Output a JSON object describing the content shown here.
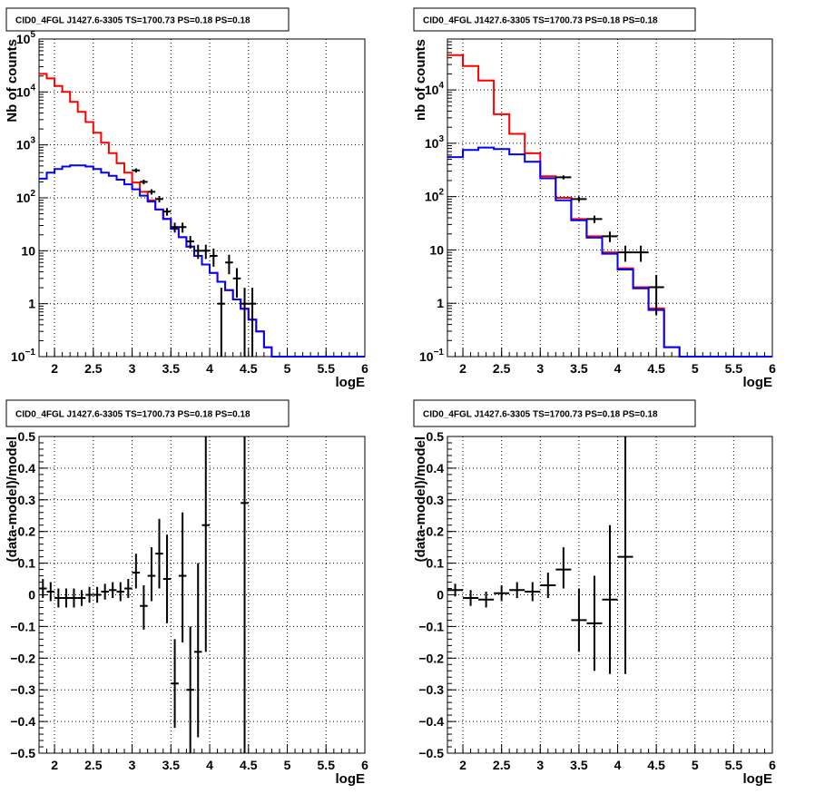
{
  "chart_data": [
    {
      "type": "histogram",
      "title": "CID0_4FGL J1427.6-3305 TS=1700.73 PS=0.18 PS=0.18",
      "xlabel": "logE",
      "ylabel": "Nb of counts",
      "xlim": [
        1.8,
        6.0
      ],
      "ylim": [
        0.1,
        100000
      ],
      "yscale": "log",
      "grid": true,
      "xticks": [
        "2",
        "2.5",
        "3",
        "3.5",
        "4",
        "4.5",
        "5",
        "5.5",
        "6"
      ],
      "yticks": [
        {
          "v": 0.1,
          "label": "10",
          "exp": "−1"
        },
        {
          "v": 1,
          "label": "1"
        },
        {
          "v": 10,
          "label": "10"
        },
        {
          "v": 100,
          "label": "10",
          "exp": "2"
        },
        {
          "v": 1000,
          "label": "10",
          "exp": "3"
        },
        {
          "v": 10000,
          "label": "10",
          "exp": "4"
        },
        {
          "v": 100000,
          "label": "10",
          "exp": "5"
        }
      ],
      "bin_edges": [
        1.8,
        1.9,
        2.0,
        2.1,
        2.2,
        2.3,
        2.4,
        2.5,
        2.6,
        2.7,
        2.8,
        2.9,
        3.0,
        3.1,
        3.2,
        3.3,
        3.4,
        3.5,
        3.6,
        3.7,
        3.8,
        3.9,
        4.0,
        4.1,
        4.2,
        4.3,
        4.4,
        4.5,
        4.6,
        4.7,
        4.8,
        4.9,
        5.0,
        5.1,
        5.2,
        5.3,
        5.4,
        5.5,
        5.6,
        5.7,
        5.8,
        5.9,
        6.0
      ],
      "series": [
        {
          "color": "#ff0000",
          "style": "step",
          "values": [
            22000,
            18000,
            13000,
            10000,
            6500,
            4200,
            2700,
            1700,
            1100,
            700,
            450,
            300,
            195,
            130,
            90,
            60,
            40,
            26,
            18,
            12,
            8,
            5.5,
            3.8,
            2.6,
            1.8,
            1.2,
            0.8,
            0.5,
            0.3,
            0.15,
            0.1,
            0.1,
            0.1,
            0.1,
            0.1,
            0.1,
            0.1,
            0.1,
            0.1,
            0.1,
            0.1,
            0.1
          ]
        },
        {
          "color": "#0000ff",
          "style": "step",
          "values": [
            230,
            300,
            350,
            390,
            410,
            410,
            390,
            350,
            300,
            260,
            220,
            180,
            145,
            110,
            85,
            60,
            40,
            26,
            18,
            12,
            8,
            5.5,
            3.8,
            2.6,
            1.8,
            1.2,
            0.8,
            0.5,
            0.3,
            0.15,
            0.1,
            0.1,
            0.1,
            0.1,
            0.1,
            0.1,
            0.1,
            0.1,
            0.1,
            0.1,
            0.1,
            0.1
          ]
        },
        {
          "color": "#000000",
          "style": "errorbar",
          "points": [
            {
              "x": 3.05,
              "xerr": 0.05,
              "y": 330,
              "ylo": 300,
              "yhi": 360
            },
            {
              "x": 3.15,
              "xerr": 0.05,
              "y": 200,
              "ylo": 180,
              "yhi": 220
            },
            {
              "x": 3.25,
              "xerr": 0.05,
              "y": 130,
              "ylo": 115,
              "yhi": 145
            },
            {
              "x": 3.35,
              "xerr": 0.05,
              "y": 95,
              "ylo": 82,
              "yhi": 108
            },
            {
              "x": 3.45,
              "xerr": 0.05,
              "y": 55,
              "ylo": 46,
              "yhi": 64
            },
            {
              "x": 3.55,
              "xerr": 0.05,
              "y": 28,
              "ylo": 22,
              "yhi": 34
            },
            {
              "x": 3.65,
              "xerr": 0.05,
              "y": 28,
              "ylo": 22,
              "yhi": 34
            },
            {
              "x": 3.75,
              "xerr": 0.05,
              "y": 15,
              "ylo": 11,
              "yhi": 19
            },
            {
              "x": 3.85,
              "xerr": 0.05,
              "y": 10,
              "ylo": 7,
              "yhi": 13
            },
            {
              "x": 3.95,
              "xerr": 0.05,
              "y": 10,
              "ylo": 7,
              "yhi": 13
            },
            {
              "x": 4.05,
              "xerr": 0.05,
              "y": 8,
              "ylo": 5,
              "yhi": 11
            },
            {
              "x": 4.15,
              "xerr": 0.05,
              "y": 1,
              "ylo": 0.1,
              "yhi": 2
            },
            {
              "x": 4.25,
              "xerr": 0.05,
              "y": 6,
              "ylo": 3.6,
              "yhi": 8.4
            },
            {
              "x": 4.35,
              "xerr": 0.05,
              "y": 3,
              "ylo": 1.3,
              "yhi": 4.7
            },
            {
              "x": 4.45,
              "xerr": 0.05,
              "y": 1,
              "ylo": 0.1,
              "yhi": 2
            },
            {
              "x": 4.55,
              "xerr": 0.05,
              "y": 1,
              "ylo": 0.1,
              "yhi": 2
            }
          ]
        }
      ]
    },
    {
      "type": "histogram",
      "title": "CID0_4FGL J1427.6-3305 TS=1700.73 PS=0.18 PS=0.18",
      "xlabel": "logE",
      "ylabel": "nb of counts",
      "xlim": [
        1.8,
        6.0
      ],
      "ylim": [
        0.1,
        90000
      ],
      "yscale": "log",
      "grid": true,
      "xticks": [
        "2",
        "2.5",
        "3",
        "3.5",
        "4",
        "4.5",
        "5",
        "5.5",
        "6"
      ],
      "yticks": [
        {
          "v": 0.1,
          "label": "10",
          "exp": "−1"
        },
        {
          "v": 1,
          "label": "1"
        },
        {
          "v": 10,
          "label": "10"
        },
        {
          "v": 100,
          "label": "10",
          "exp": "2"
        },
        {
          "v": 1000,
          "label": "10",
          "exp": "3"
        },
        {
          "v": 10000,
          "label": "10",
          "exp": "4"
        }
      ],
      "bin_edges": [
        1.8,
        2.0,
        2.2,
        2.4,
        2.6,
        2.8,
        3.0,
        3.2,
        3.4,
        3.6,
        3.8,
        4.0,
        4.2,
        4.4,
        4.6,
        4.8,
        5.0,
        5.2,
        5.4,
        5.6,
        5.8,
        6.0
      ],
      "series": [
        {
          "color": "#ff0000",
          "style": "step",
          "values": [
            45000,
            28000,
            15000,
            3500,
            1500,
            650,
            240,
            95,
            38,
            18,
            9,
            4.5,
            2,
            0.8,
            0.15,
            0.1,
            0.1,
            0.1,
            0.1,
            0.1,
            0.1
          ]
        },
        {
          "color": "#0000ff",
          "style": "step",
          "values": [
            550,
            750,
            830,
            780,
            620,
            450,
            220,
            85,
            36,
            17,
            8.5,
            4.3,
            1.9,
            0.75,
            0.15,
            0.1,
            0.1,
            0.1,
            0.1,
            0.1,
            0.1
          ]
        },
        {
          "color": "#000000",
          "style": "errorbar",
          "points": [
            {
              "x": 3.3,
              "xerr": 0.1,
              "y": 230,
              "ylo": 210,
              "yhi": 250
            },
            {
              "x": 3.5,
              "xerr": 0.1,
              "y": 90,
              "ylo": 80,
              "yhi": 100
            },
            {
              "x": 3.7,
              "xerr": 0.1,
              "y": 38,
              "ylo": 32,
              "yhi": 44
            },
            {
              "x": 3.9,
              "xerr": 0.1,
              "y": 18,
              "ylo": 14,
              "yhi": 22
            },
            {
              "x": 4.1,
              "xerr": 0.1,
              "y": 9,
              "ylo": 6,
              "yhi": 12
            },
            {
              "x": 4.3,
              "xerr": 0.1,
              "y": 9,
              "ylo": 6,
              "yhi": 12
            },
            {
              "x": 4.5,
              "xerr": 0.1,
              "y": 2,
              "ylo": 0.6,
              "yhi": 3.4
            }
          ]
        }
      ]
    },
    {
      "type": "scatter",
      "title": "CID0_4FGL J1427.6-3305 TS=1700.73 PS=0.18 PS=0.18",
      "xlabel": "logE",
      "ylabel": "(data-model)/model",
      "xlim": [
        1.8,
        6.0
      ],
      "ylim": [
        -0.5,
        0.5
      ],
      "yscale": "linear",
      "grid": true,
      "xticks": [
        "2",
        "2.5",
        "3",
        "3.5",
        "4",
        "4.5",
        "5",
        "5.5",
        "6"
      ],
      "yticks": [
        {
          "v": -0.5,
          "label": "−0.5"
        },
        {
          "v": -0.4,
          "label": "−0.4"
        },
        {
          "v": -0.3,
          "label": "−0.3"
        },
        {
          "v": -0.2,
          "label": "−0.2"
        },
        {
          "v": -0.1,
          "label": "−0.1"
        },
        {
          "v": 0,
          "label": "0"
        },
        {
          "v": 0.1,
          "label": "0.1"
        },
        {
          "v": 0.2,
          "label": "0.2"
        },
        {
          "v": 0.3,
          "label": "0.3"
        },
        {
          "v": 0.4,
          "label": "0.4"
        },
        {
          "v": 0.5,
          "label": "0.5"
        }
      ],
      "series": [
        {
          "color": "#000000",
          "style": "errorbar",
          "points": [
            {
              "x": 1.85,
              "xerr": 0.05,
              "y": 0.02,
              "ylo": -0.01,
              "yhi": 0.05
            },
            {
              "x": 1.95,
              "xerr": 0.05,
              "y": 0.01,
              "ylo": -0.02,
              "yhi": 0.04
            },
            {
              "x": 2.05,
              "xerr": 0.05,
              "y": -0.01,
              "ylo": -0.04,
              "yhi": 0.02
            },
            {
              "x": 2.15,
              "xerr": 0.05,
              "y": -0.01,
              "ylo": -0.04,
              "yhi": 0.02
            },
            {
              "x": 2.25,
              "xerr": 0.05,
              "y": -0.01,
              "ylo": -0.04,
              "yhi": 0.02
            },
            {
              "x": 2.35,
              "xerr": 0.05,
              "y": -0.01,
              "ylo": -0.035,
              "yhi": 0.015
            },
            {
              "x": 2.45,
              "xerr": 0.05,
              "y": 0.0,
              "ylo": -0.025,
              "yhi": 0.025
            },
            {
              "x": 2.55,
              "xerr": 0.05,
              "y": 0.0,
              "ylo": -0.025,
              "yhi": 0.025
            },
            {
              "x": 2.65,
              "xerr": 0.05,
              "y": 0.01,
              "ylo": -0.015,
              "yhi": 0.035
            },
            {
              "x": 2.75,
              "xerr": 0.05,
              "y": 0.015,
              "ylo": -0.01,
              "yhi": 0.04
            },
            {
              "x": 2.85,
              "xerr": 0.05,
              "y": 0.01,
              "ylo": -0.02,
              "yhi": 0.04
            },
            {
              "x": 2.95,
              "xerr": 0.05,
              "y": 0.02,
              "ylo": -0.01,
              "yhi": 0.05
            },
            {
              "x": 3.05,
              "xerr": 0.05,
              "y": 0.07,
              "ylo": 0.02,
              "yhi": 0.13
            },
            {
              "x": 3.15,
              "xerr": 0.05,
              "y": -0.035,
              "ylo": -0.11,
              "yhi": 0.03
            },
            {
              "x": 3.25,
              "xerr": 0.05,
              "y": 0.06,
              "ylo": -0.02,
              "yhi": 0.15
            },
            {
              "x": 3.35,
              "xerr": 0.05,
              "y": 0.13,
              "ylo": 0.02,
              "yhi": 0.24
            },
            {
              "x": 3.45,
              "xerr": 0.05,
              "y": 0.05,
              "ylo": -0.09,
              "yhi": 0.19
            },
            {
              "x": 3.55,
              "xerr": 0.05,
              "y": -0.28,
              "ylo": -0.42,
              "yhi": -0.14
            },
            {
              "x": 3.65,
              "xerr": 0.05,
              "y": 0.06,
              "ylo": -0.15,
              "yhi": 0.26
            },
            {
              "x": 3.75,
              "xerr": 0.05,
              "y": -0.3,
              "ylo": -0.5,
              "yhi": -0.1
            },
            {
              "x": 3.85,
              "xerr": 0.05,
              "y": -0.18,
              "ylo": -0.45,
              "yhi": 0.1
            },
            {
              "x": 3.95,
              "xerr": 0.05,
              "y": 0.22,
              "ylo": -0.18,
              "yhi": 0.5
            },
            {
              "x": 4.45,
              "xerr": 0.05,
              "y": 0.29,
              "ylo": -0.5,
              "yhi": 0.5
            }
          ]
        }
      ]
    },
    {
      "type": "scatter",
      "title": "CID0_4FGL J1427.6-3305 TS=1700.73 PS=0.18 PS=0.18",
      "xlabel": "logE",
      "ylabel": "(data-model)/model",
      "xlim": [
        1.8,
        6.0
      ],
      "ylim": [
        -0.5,
        0.5
      ],
      "yscale": "linear",
      "grid": true,
      "xticks": [
        "2",
        "2.5",
        "3",
        "3.5",
        "4",
        "4.5",
        "5",
        "5.5",
        "6"
      ],
      "yticks": [
        {
          "v": -0.5,
          "label": "−0.5"
        },
        {
          "v": -0.4,
          "label": "−0.4"
        },
        {
          "v": -0.3,
          "label": "−0.3"
        },
        {
          "v": -0.2,
          "label": "−0.2"
        },
        {
          "v": -0.1,
          "label": "−0.1"
        },
        {
          "v": 0,
          "label": "0"
        },
        {
          "v": 0.1,
          "label": "0.1"
        },
        {
          "v": 0.2,
          "label": "0.2"
        },
        {
          "v": 0.3,
          "label": "0.3"
        },
        {
          "v": 0.4,
          "label": "0.4"
        },
        {
          "v": 0.5,
          "label": "0.5"
        }
      ],
      "series": [
        {
          "color": "#000000",
          "style": "errorbar",
          "points": [
            {
              "x": 1.9,
              "xerr": 0.1,
              "y": 0.015,
              "ylo": -0.005,
              "yhi": 0.035
            },
            {
              "x": 2.1,
              "xerr": 0.1,
              "y": -0.01,
              "ylo": -0.035,
              "yhi": 0.015
            },
            {
              "x": 2.3,
              "xerr": 0.1,
              "y": -0.015,
              "ylo": -0.04,
              "yhi": 0.01
            },
            {
              "x": 2.5,
              "xerr": 0.1,
              "y": 0.005,
              "ylo": -0.02,
              "yhi": 0.03
            },
            {
              "x": 2.7,
              "xerr": 0.1,
              "y": 0.015,
              "ylo": -0.01,
              "yhi": 0.04
            },
            {
              "x": 2.9,
              "xerr": 0.1,
              "y": 0.01,
              "ylo": -0.02,
              "yhi": 0.04
            },
            {
              "x": 3.1,
              "xerr": 0.1,
              "y": 0.03,
              "ylo": -0.01,
              "yhi": 0.07
            },
            {
              "x": 3.3,
              "xerr": 0.1,
              "y": 0.08,
              "ylo": 0.02,
              "yhi": 0.15
            },
            {
              "x": 3.5,
              "xerr": 0.1,
              "y": -0.08,
              "ylo": -0.18,
              "yhi": 0.02
            },
            {
              "x": 3.7,
              "xerr": 0.1,
              "y": -0.09,
              "ylo": -0.24,
              "yhi": 0.06
            },
            {
              "x": 3.9,
              "xerr": 0.1,
              "y": -0.015,
              "ylo": -0.25,
              "yhi": 0.22
            },
            {
              "x": 4.1,
              "xerr": 0.1,
              "y": 0.12,
              "ylo": -0.25,
              "yhi": 0.5
            }
          ]
        }
      ]
    }
  ]
}
